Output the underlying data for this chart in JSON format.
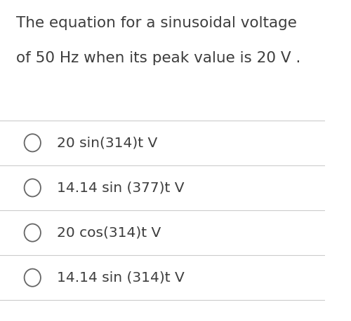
{
  "background_color": "#ffffff",
  "question_line1": "The equation for a sinusoidal voltage",
  "question_line2": "of 50 Hz when its peak value is 20 V .",
  "options": [
    "20 sin(314)t V",
    "14.14 sin (377)t V",
    "20 cos(314)t V",
    "14.14 sin (314)t V"
  ],
  "question_fontsize": 15.5,
  "option_fontsize": 14.5,
  "text_color": "#3d3d3d",
  "line_color": "#cccccc",
  "circle_color": "#666666",
  "fig_width": 5.0,
  "fig_height": 4.58,
  "dpi": 100
}
